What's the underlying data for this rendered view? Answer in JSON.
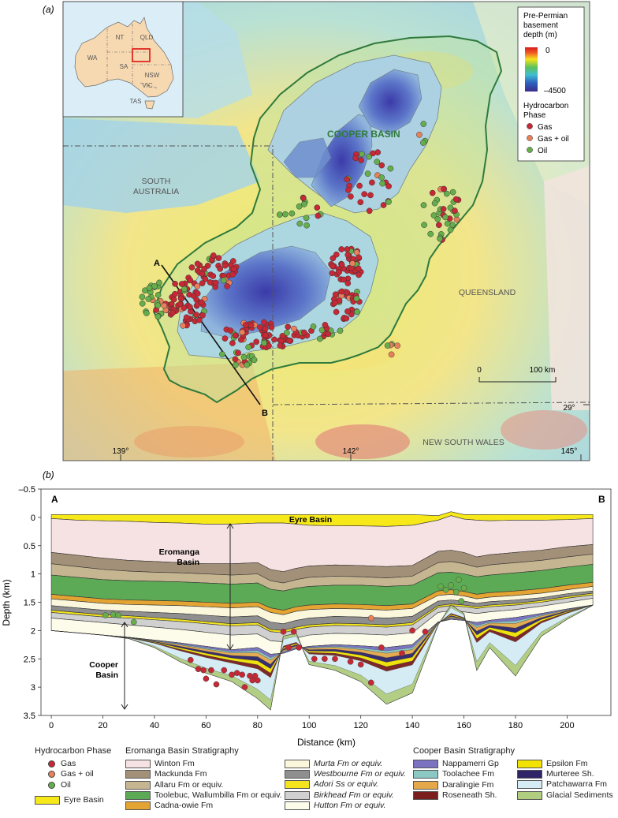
{
  "panel_a": {
    "label": "(a)",
    "inset": {
      "state_labels": [
        "NT",
        "QLD",
        "WA",
        "SA",
        "NSW",
        "VIC",
        "TAS"
      ]
    },
    "legend": {
      "title_line1": "Pre-Permian",
      "title_line2": "basement",
      "title_line3": "depth (m)",
      "depth_top": "0",
      "depth_bottom": "–4500",
      "phase_title_line1": "Hydrocarbon",
      "phase_title_line2": "Phase",
      "gas": "Gas",
      "gas_oil": "Gas + oil",
      "oil": "Oil"
    },
    "labels": {
      "cooper_basin": "COOPER BASIN",
      "south_australia_line1": "SOUTH",
      "south_australia_line2": "AUSTRALIA",
      "queensland": "QUEENSLAND",
      "new_south_wales": "NEW SOUTH WALES",
      "section_a": "A",
      "section_b": "B",
      "lat_29": "29°",
      "scale_0": "0",
      "scale_100": "100 km"
    },
    "longitudes": [
      "139°",
      "142°",
      "145°"
    ]
  },
  "panel_b": {
    "label": "(b)",
    "end_a": "A",
    "end_b": "B",
    "eyre_label": "Eyre Basin",
    "eromanga_label_line1": "Eromanga",
    "eromanga_label_line2": "Basin",
    "cooper_label_line1": "Cooper",
    "cooper_label_line2": "Basin",
    "xlabel": "Distance (km)",
    "ylabel": "Depth (km)",
    "xticks": [
      "0",
      "20",
      "40",
      "60",
      "80",
      "100",
      "120",
      "140",
      "160",
      "180",
      "200"
    ],
    "yticks": [
      "–0.5",
      "0",
      "0.5",
      "1",
      "1.5",
      "2",
      "2.5",
      "3",
      "3.5"
    ]
  },
  "chart_data": {
    "type": "area",
    "xlabel": "Distance (km)",
    "ylabel": "Depth (km)",
    "xlim": [
      -4,
      217
    ],
    "ylim": [
      3.5,
      -0.5
    ],
    "y_inverted": true,
    "x": [
      0,
      10,
      20,
      30,
      40,
      50,
      60,
      70,
      80,
      85,
      90,
      95,
      100,
      110,
      120,
      130,
      140,
      150,
      155,
      160,
      165,
      170,
      180,
      190,
      200,
      210
    ],
    "boundaries": [
      {
        "name": "Surface",
        "values": [
          -0.05,
          -0.05,
          -0.05,
          -0.05,
          -0.05,
          -0.05,
          -0.05,
          -0.05,
          -0.05,
          -0.05,
          -0.05,
          -0.05,
          -0.05,
          -0.05,
          -0.05,
          -0.05,
          -0.05,
          -0.03,
          -0.1,
          -0.05,
          -0.05,
          -0.05,
          -0.05,
          -0.05,
          -0.05,
          -0.05
        ]
      },
      {
        "name": "Base Eyre Basin",
        "values": [
          0.02,
          0.05,
          0.06,
          0.07,
          0.09,
          0.1,
          0.12,
          0.12,
          0.1,
          0.1,
          0.1,
          0.12,
          0.14,
          0.15,
          0.15,
          0.16,
          0.14,
          0.05,
          -0.03,
          0.03,
          0.05,
          0.06,
          0.05,
          0.05,
          0.04,
          0.02
        ]
      },
      {
        "name": "Base Winton Fm",
        "values": [
          0.62,
          0.67,
          0.72,
          0.76,
          0.78,
          0.8,
          0.82,
          0.82,
          0.8,
          0.92,
          0.96,
          0.9,
          0.86,
          0.84,
          0.85,
          0.87,
          0.85,
          0.6,
          0.58,
          0.62,
          0.7,
          0.66,
          0.62,
          0.58,
          0.52,
          0.48
        ]
      },
      {
        "name": "Base Mackunda Fm",
        "values": [
          0.82,
          0.87,
          0.92,
          0.95,
          0.97,
          0.98,
          1.0,
          1.02,
          1.0,
          1.12,
          1.16,
          1.1,
          1.06,
          1.04,
          1.05,
          1.07,
          1.04,
          0.8,
          0.78,
          0.82,
          0.88,
          0.84,
          0.8,
          0.76,
          0.7,
          0.65
        ]
      },
      {
        "name": "Base Allaru Fm",
        "values": [
          1.02,
          1.06,
          1.1,
          1.12,
          1.13,
          1.14,
          1.16,
          1.18,
          1.16,
          1.27,
          1.3,
          1.25,
          1.22,
          1.2,
          1.2,
          1.22,
          1.2,
          0.98,
          0.97,
          1.0,
          1.05,
          1.02,
          0.98,
          0.94,
          0.88,
          0.83
        ]
      },
      {
        "name": "Base Toolebuc, Wallumbilla Fm",
        "values": [
          1.36,
          1.4,
          1.44,
          1.46,
          1.47,
          1.48,
          1.5,
          1.52,
          1.5,
          1.6,
          1.64,
          1.58,
          1.55,
          1.53,
          1.54,
          1.56,
          1.53,
          1.3,
          1.28,
          1.31,
          1.36,
          1.33,
          1.3,
          1.26,
          1.2,
          1.15
        ]
      },
      {
        "name": "Base Cadna-owie Fm",
        "values": [
          1.44,
          1.48,
          1.52,
          1.54,
          1.55,
          1.56,
          1.58,
          1.6,
          1.58,
          1.68,
          1.72,
          1.66,
          1.63,
          1.61,
          1.62,
          1.64,
          1.61,
          1.38,
          1.36,
          1.39,
          1.44,
          1.41,
          1.38,
          1.34,
          1.28,
          1.22
        ]
      },
      {
        "name": "Base Murta Fm",
        "values": [
          1.56,
          1.6,
          1.64,
          1.66,
          1.68,
          1.7,
          1.73,
          1.76,
          1.74,
          1.85,
          1.88,
          1.82,
          1.78,
          1.75,
          1.76,
          1.78,
          1.75,
          1.48,
          1.46,
          1.48,
          1.52,
          1.49,
          1.46,
          1.42,
          1.35,
          1.3
        ]
      },
      {
        "name": "Base Westbourne Fm",
        "values": [
          1.64,
          1.68,
          1.72,
          1.74,
          1.77,
          1.8,
          1.84,
          1.88,
          1.86,
          1.98,
          2.0,
          1.94,
          1.9,
          1.87,
          1.88,
          1.9,
          1.86,
          1.56,
          1.53,
          1.55,
          1.58,
          1.55,
          1.52,
          1.47,
          1.4,
          1.34
        ]
      },
      {
        "name": "Base Adori Ss",
        "values": [
          1.68,
          1.72,
          1.76,
          1.78,
          1.81,
          1.84,
          1.88,
          1.92,
          1.9,
          2.02,
          2.04,
          1.98,
          1.94,
          1.91,
          1.92,
          1.94,
          1.9,
          1.59,
          1.56,
          1.58,
          1.61,
          1.58,
          1.55,
          1.5,
          1.43,
          1.37
        ]
      },
      {
        "name": "Base Birkhead Fm",
        "values": [
          1.78,
          1.82,
          1.86,
          1.9,
          1.94,
          1.98,
          2.03,
          2.08,
          2.06,
          2.18,
          2.2,
          2.13,
          2.08,
          2.05,
          2.06,
          2.08,
          2.04,
          1.68,
          1.65,
          1.67,
          1.7,
          1.67,
          1.63,
          1.57,
          1.5,
          1.43
        ]
      },
      {
        "name": "Base Hutton Fm",
        "values": [
          2.0,
          2.04,
          2.08,
          2.12,
          2.17,
          2.22,
          2.28,
          2.34,
          2.3,
          2.42,
          2.4,
          2.32,
          2.28,
          2.25,
          2.27,
          2.3,
          2.25,
          1.85,
          1.8,
          1.82,
          1.86,
          1.82,
          1.77,
          1.7,
          1.62,
          1.55
        ]
      },
      {
        "name": "Base Cooper Basin (pre-Permian basement)",
        "values": [
          2.0,
          2.04,
          2.08,
          2.14,
          2.3,
          2.55,
          2.75,
          2.9,
          3.2,
          3.4,
          2.1,
          2.05,
          2.6,
          2.7,
          2.9,
          3.3,
          3.1,
          1.9,
          1.55,
          1.7,
          2.7,
          2.3,
          2.8,
          2.1,
          1.8,
          1.55
        ]
      }
    ],
    "hydrocarbon_points": {
      "gas": [
        [
          54,
          2.52
        ],
        [
          57,
          2.68
        ],
        [
          59,
          2.7
        ],
        [
          60,
          2.85
        ],
        [
          62,
          2.7
        ],
        [
          64,
          2.95
        ],
        [
          67,
          2.7
        ],
        [
          70,
          2.78
        ],
        [
          72,
          2.75
        ],
        [
          74,
          2.78
        ],
        [
          75,
          3.0
        ],
        [
          77,
          2.8
        ],
        [
          78,
          2.88
        ],
        [
          79,
          2.8
        ],
        [
          80,
          2.88
        ],
        [
          90,
          2.02
        ],
        [
          92,
          2.3
        ],
        [
          94,
          2.02
        ],
        [
          96,
          2.3
        ],
        [
          102,
          2.5
        ],
        [
          106,
          2.5
        ],
        [
          110,
          2.5
        ],
        [
          116,
          2.55
        ],
        [
          120,
          2.6
        ],
        [
          124,
          2.92
        ],
        [
          128,
          2.3
        ],
        [
          136,
          2.4
        ],
        [
          140,
          2.0
        ],
        [
          145,
          2.02
        ]
      ],
      "gas_oil": [
        [
          124,
          1.78
        ]
      ],
      "oil": [
        [
          21,
          1.73
        ],
        [
          24,
          1.72
        ],
        [
          26,
          1.73
        ],
        [
          32,
          1.85
        ],
        [
          151,
          1.22
        ],
        [
          153,
          1.28
        ],
        [
          155,
          1.2
        ],
        [
          157,
          1.32
        ],
        [
          158,
          1.1
        ],
        [
          160,
          1.25
        ],
        [
          159,
          1.48
        ]
      ]
    },
    "annotations": [
      "Eyre Basin",
      "Eromanga Basin",
      "Cooper Basin",
      "A",
      "B"
    ]
  },
  "legend": {
    "hydrocarbon": {
      "title": "Hydrocarbon Phase",
      "gas": "Gas",
      "gas_oil": "Gas + oil",
      "oil": "Oil",
      "eyre": "Eyre Basin"
    },
    "eromanga": {
      "title": "Eromanga Basin Stratigraphy",
      "col1": [
        {
          "label": "Winton Fm",
          "color": "#f6e2e2"
        },
        {
          "label": "Mackunda Fm",
          "color": "#a39078"
        },
        {
          "label": "Allaru Fm or equiv.",
          "color": "#c5b591"
        },
        {
          "label": "Toolebuc, Wallumbilla Fm or equiv.",
          "color": "#5caa55"
        },
        {
          "label": "Cadna-owie Fm",
          "color": "#e4a433"
        }
      ],
      "col2": [
        {
          "label": "Murta Fm or equiv.",
          "color": "#fbf7dc"
        },
        {
          "label": "Westbourne Fm or equiv.",
          "color": "#8f8f8f"
        },
        {
          "label": "Adori Ss or equiv.",
          "color": "#f3e41e"
        },
        {
          "label": "Birkhead Fm or equiv.",
          "color": "#d0d0d0"
        },
        {
          "label": "Hutton Fm or equiv.",
          "color": "#fdfbea"
        }
      ]
    },
    "cooper": {
      "title": "Cooper Basin Stratigraphy",
      "col1": [
        {
          "label": "Nappamerri Gp",
          "color": "#7b72c2"
        },
        {
          "label": "Toolachee Fm",
          "color": "#8cc8c3"
        },
        {
          "label": "Daralingie Fm",
          "color": "#e4a84a"
        },
        {
          "label": "Roseneath Sh.",
          "color": "#7a1e1e"
        }
      ],
      "col2": [
        {
          "label": "Epsilon Fm",
          "color": "#f2e200"
        },
        {
          "label": "Murteree Sh.",
          "color": "#2f2468"
        },
        {
          "label": "Patchawarra Fm",
          "color": "#d5ecf5"
        },
        {
          "label": "Glacial Sediments",
          "color": "#b1cd80"
        }
      ]
    }
  },
  "colors": {
    "gas": "#c62835",
    "gas_oil": "#e9805a",
    "oil": "#66ae4c",
    "eyre": "#f7e919",
    "basin_outline": "#2f7a3c"
  }
}
